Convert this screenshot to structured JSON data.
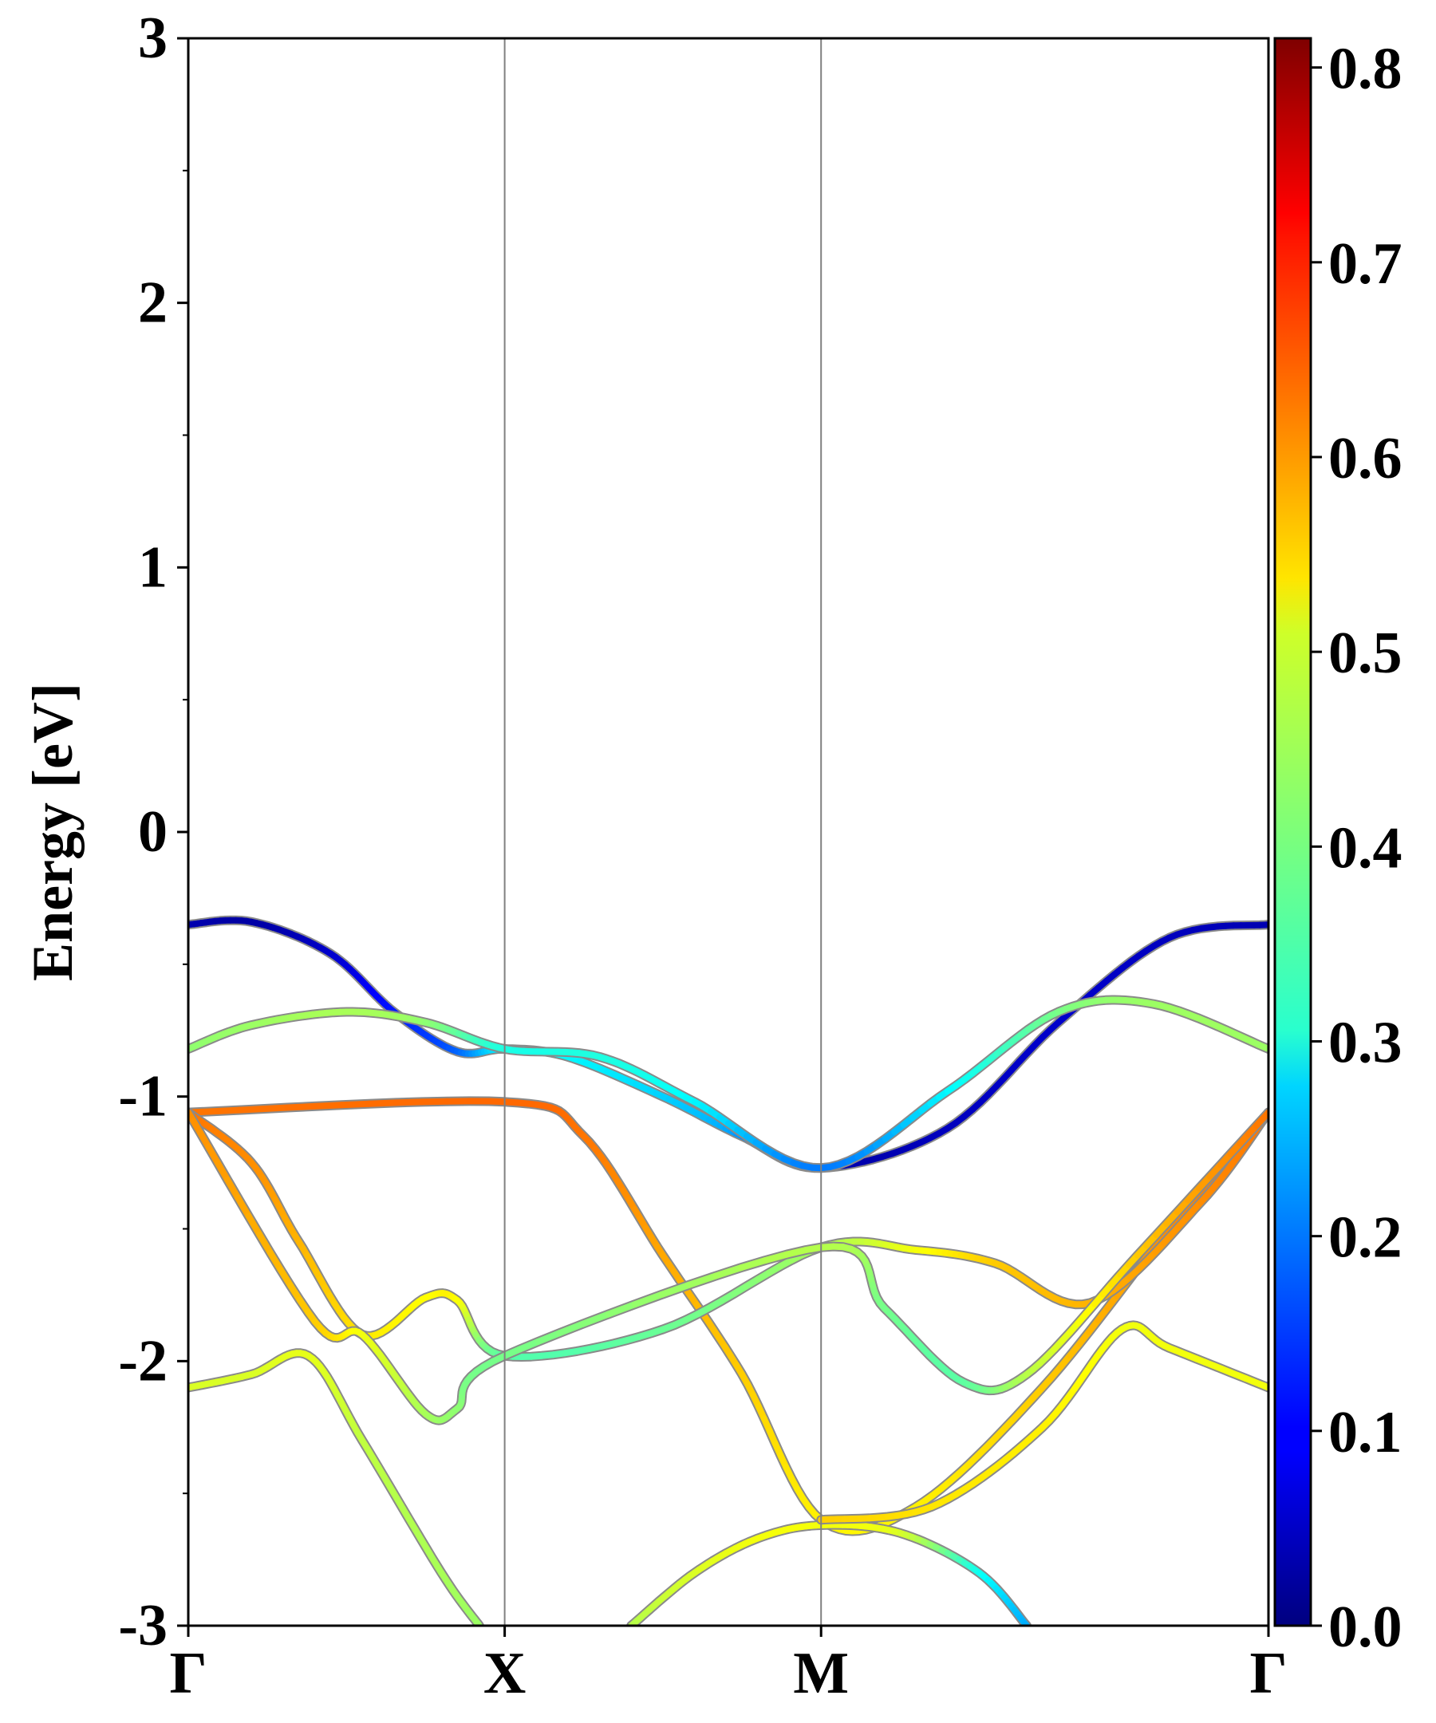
{
  "chart_data": {
    "type": "line",
    "title": "",
    "xlabel": "",
    "ylabel": "Energy [eV]",
    "ylim": [
      -3,
      3
    ],
    "y_ticks": [
      -3,
      -2,
      -1,
      0,
      1,
      2,
      3
    ],
    "k_points": [
      "Γ",
      "X",
      "M",
      "Γ"
    ],
    "k_distance_ranges": [
      [
        0,
        1
      ],
      [
        1,
        2
      ],
      [
        2,
        3.414
      ]
    ],
    "grid": false,
    "vertical_lines_at_k_points": true,
    "color_encoding": "projected weight (jet colormap)",
    "colorbar": {
      "colormap": "jet",
      "range": [
        0.0,
        0.815
      ],
      "ticks": [
        "0.0",
        "0.1",
        "0.2",
        "0.3",
        "0.4",
        "0.5",
        "0.6",
        "0.7",
        "0.8"
      ]
    },
    "series": [
      {
        "points": [
          [
            0,
            -0.35,
            0.04
          ],
          [
            0.2,
            -0.34,
            0.03
          ],
          [
            0.45,
            -0.46,
            0.06
          ],
          [
            0.65,
            -0.68,
            0.12
          ],
          [
            0.85,
            -0.83,
            0.18
          ],
          [
            1,
            -0.82,
            0.3
          ],
          [
            1.2,
            -0.85,
            0.3
          ],
          [
            1.5,
            -1.0,
            0.27
          ],
          [
            1.75,
            -1.15,
            0.22
          ],
          [
            2,
            -1.27,
            0.05
          ],
          [
            2.4,
            -1.12,
            0.05
          ],
          [
            2.75,
            -0.72,
            0.06
          ],
          [
            3.1,
            -0.4,
            0.05
          ],
          [
            3.414,
            -0.35,
            0.04
          ]
        ]
      },
      {
        "points": [
          [
            0,
            -0.82,
            0.42
          ],
          [
            0.2,
            -0.73,
            0.43
          ],
          [
            0.5,
            -0.68,
            0.44
          ],
          [
            0.75,
            -0.72,
            0.42
          ],
          [
            1,
            -0.82,
            0.33
          ],
          [
            1.3,
            -0.85,
            0.33
          ],
          [
            1.6,
            -1.02,
            0.3
          ],
          [
            2,
            -1.27,
            0.2
          ],
          [
            2.4,
            -0.98,
            0.3
          ],
          [
            2.75,
            -0.68,
            0.4
          ],
          [
            3.05,
            -0.65,
            0.43
          ],
          [
            3.414,
            -0.82,
            0.43
          ]
        ]
      },
      {
        "points": [
          [
            0,
            -1.06,
            0.62
          ],
          [
            1,
            -1.02,
            0.63
          ],
          [
            1.25,
            -1.15,
            0.62
          ],
          [
            1.5,
            -1.6,
            0.58
          ],
          [
            1.75,
            -2.05,
            0.55
          ],
          [
            2,
            -2.6,
            0.52
          ],
          [
            2.3,
            -2.55,
            0.52
          ],
          [
            2.7,
            -2.1,
            0.55
          ],
          [
            3.1,
            -1.5,
            0.6
          ],
          [
            3.414,
            -1.06,
            0.62
          ]
        ]
      },
      {
        "points": [
          [
            0,
            -1.06,
            0.62
          ],
          [
            0.2,
            -1.25,
            0.6
          ],
          [
            0.35,
            -1.55,
            0.57
          ],
          [
            0.55,
            -1.9,
            0.53
          ],
          [
            0.75,
            -1.76,
            0.51
          ],
          [
            0.85,
            -1.77,
            0.51
          ],
          [
            1,
            -1.98,
            0.38
          ],
          [
            1.5,
            -1.88,
            0.39
          ],
          [
            2,
            -1.57,
            0.44
          ],
          [
            2.3,
            -1.58,
            0.5
          ],
          [
            2.55,
            -1.63,
            0.55
          ],
          [
            2.85,
            -1.78,
            0.57
          ],
          [
            3.2,
            -1.4,
            0.6
          ],
          [
            3.414,
            -1.06,
            0.62
          ]
        ]
      },
      {
        "points": [
          [
            0,
            -1.06,
            0.6
          ],
          [
            0.4,
            -1.85,
            0.55
          ],
          [
            0.55,
            -1.9,
            0.5
          ],
          [
            0.75,
            -2.2,
            0.44
          ],
          [
            0.85,
            -2.18,
            0.42
          ],
          [
            1,
            -1.98,
            0.4
          ],
          [
            2,
            -1.57,
            0.45
          ],
          [
            2.2,
            -1.8,
            0.4
          ],
          [
            2.45,
            -2.08,
            0.38
          ],
          [
            2.65,
            -2.05,
            0.45
          ],
          [
            3,
            -1.6,
            0.55
          ],
          [
            3.414,
            -1.06,
            0.62
          ]
        ]
      },
      {
        "points": [
          [
            0,
            -2.1,
            0.48
          ],
          [
            0.2,
            -2.05,
            0.48
          ],
          [
            0.38,
            -1.98,
            0.49
          ],
          [
            0.55,
            -2.3,
            0.46
          ],
          [
            0.8,
            -2.8,
            0.44
          ],
          [
            0.92,
            -3.0,
            0.43
          ]
        ]
      },
      {
        "points": [
          [
            1.4,
            -3.0,
            0.45
          ],
          [
            1.6,
            -2.8,
            0.48
          ],
          [
            1.8,
            -2.67,
            0.5
          ],
          [
            2,
            -2.62,
            0.5
          ],
          [
            2.25,
            -2.65,
            0.48
          ],
          [
            2.5,
            -2.8,
            0.32
          ],
          [
            2.65,
            -3.0,
            0.24
          ]
        ]
      },
      {
        "points": [
          [
            2,
            -2.6,
            0.55
          ],
          [
            2.35,
            -2.55,
            0.53
          ],
          [
            2.7,
            -2.25,
            0.52
          ],
          [
            2.95,
            -1.88,
            0.5
          ],
          [
            3.1,
            -1.95,
            0.5
          ],
          [
            3.414,
            -2.1,
            0.5
          ]
        ]
      }
    ]
  }
}
